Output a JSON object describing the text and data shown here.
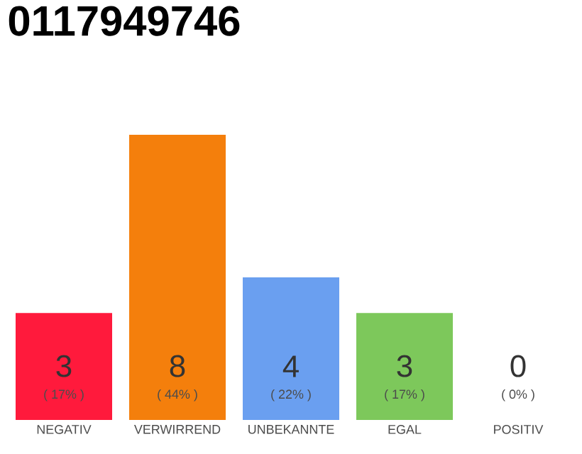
{
  "chart_data": {
    "type": "bar",
    "title": "0117949746",
    "categories": [
      "NEGATIV",
      "VERWIRREND",
      "UNBEKANNTE",
      "EGAL",
      "POSITIV"
    ],
    "values": [
      3,
      8,
      4,
      3,
      0
    ],
    "colors": [
      "#ff1a3c",
      "#f47f0c",
      "#6a9ff0",
      "#7dc85b",
      "#cccccc"
    ],
    "ylim": [
      0,
      8
    ],
    "tick_labels": "x",
    "data_labels": true,
    "annotations": [
      "( 17% )",
      "( 44% )",
      "( 22% )",
      "( 17% )",
      "( 0% )"
    ]
  }
}
